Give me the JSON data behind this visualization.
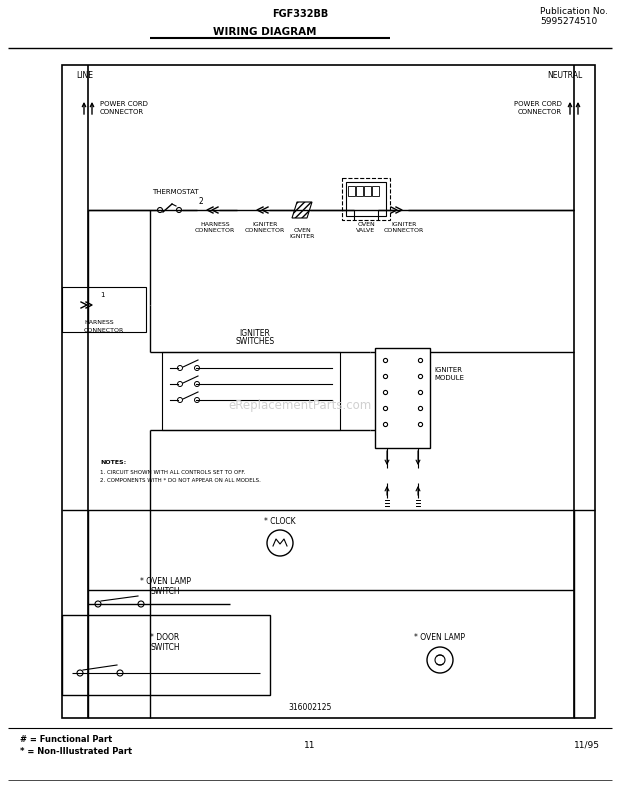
{
  "title_center": "FGF332BB",
  "title_right_line1": "Publication No.",
  "title_right_line2": "5995274510",
  "subtitle": "WIRING DIAGRAM",
  "page_number": "11",
  "date": "11/95",
  "footer_line1": "# = Functional Part",
  "footer_line2": "* = Non-Illustrated Part",
  "part_number": "316002125",
  "bg_color": "#ffffff",
  "line_color": "#000000",
  "watermark": "eReplacementParts.com"
}
